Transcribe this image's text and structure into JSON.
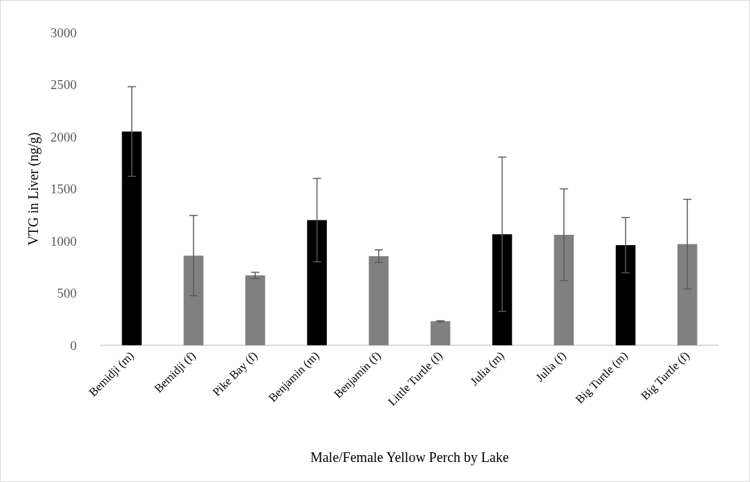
{
  "chart_data": {
    "type": "bar",
    "xlabel": "Male/Female Yellow Perch by Lake",
    "ylabel": "VTG in Liver (ng/g)",
    "categories": [
      "Bemidji (m)",
      "Bemidji (f)",
      "Pike Bay (f)",
      "Benjamin (m)",
      "Benjamin (f)",
      "Little Turtle (f)",
      "Julia (m)",
      "Julia (f)",
      "Big Turtle (m)",
      "Big Turtle (f)"
    ],
    "values": [
      2050,
      860,
      670,
      1200,
      855,
      230,
      1065,
      1060,
      960,
      970
    ],
    "colors": [
      "#000000",
      "#808080",
      "#808080",
      "#000000",
      "#808080",
      "#808080",
      "#000000",
      "#808080",
      "#000000",
      "#808080"
    ],
    "errors": [
      430,
      385,
      30,
      400,
      60,
      5,
      740,
      440,
      265,
      430
    ],
    "ylim": [
      0,
      3000
    ],
    "yticks": [
      0,
      500,
      1000,
      1500,
      2000,
      2500,
      3000
    ],
    "grid": false
  }
}
